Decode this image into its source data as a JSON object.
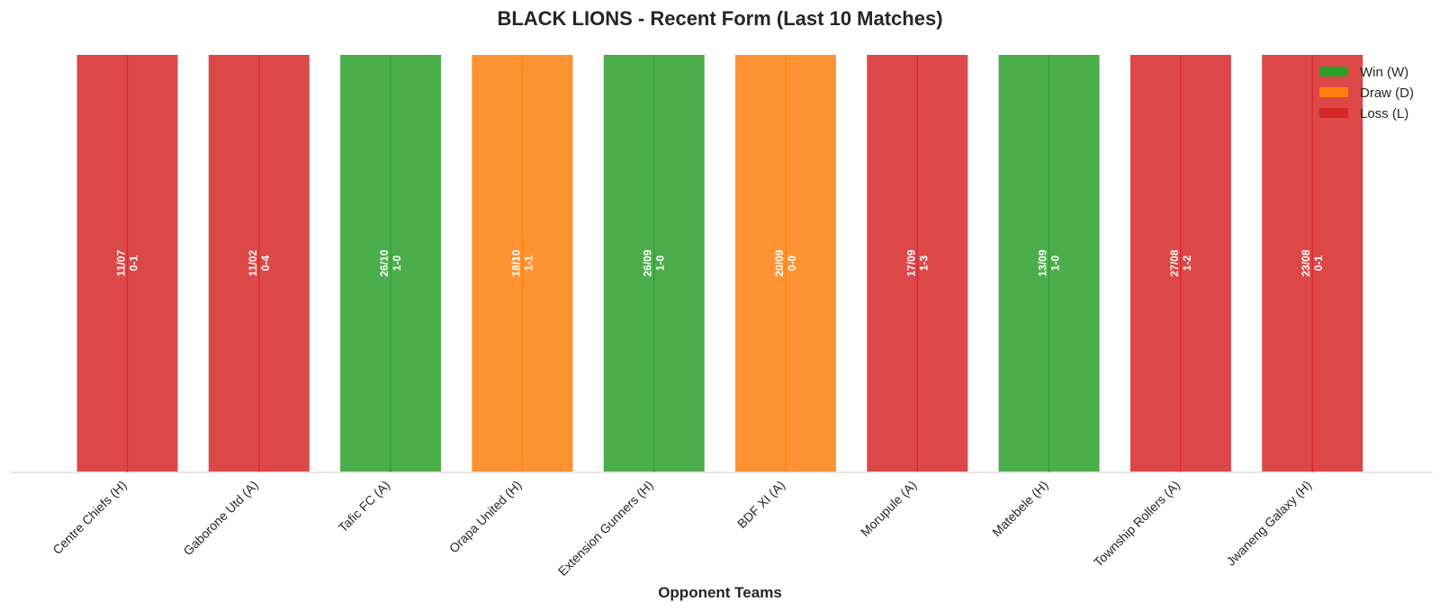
{
  "chart_data": {
    "type": "bar",
    "title": "BLACK LIONS - Recent Form (Last 10 Matches)",
    "xlabel": "Opponent Teams",
    "ylabel": "",
    "categories": [
      "Centre Chiefs (H)",
      "Gaborone Utd (A)",
      "Tafic FC (A)",
      "Orapa United (H)",
      "Extension Gunners (H)",
      "BDF XI (A)",
      "Morupule (A)",
      "Matebele (H)",
      "Township Rollers (A)",
      "Jwaneng Galaxy (H)"
    ],
    "results": [
      "L",
      "L",
      "W",
      "D",
      "W",
      "D",
      "L",
      "W",
      "L",
      "L"
    ],
    "dates": [
      "11/07",
      "11/02",
      "26/10",
      "18/10",
      "26/09",
      "20/09",
      "17/09",
      "13/09",
      "27/08",
      "23/08"
    ],
    "scores": [
      "0-1",
      "0-4",
      "1-0",
      "1-1",
      "1-0",
      "0-0",
      "1-3",
      "1-0",
      "1-2",
      "0-1"
    ],
    "values": [
      1,
      1,
      1,
      1,
      1,
      1,
      1,
      1,
      1,
      1
    ],
    "ylim": [
      0,
      1
    ],
    "grid": false,
    "legend_position": "top-right",
    "legend": [
      {
        "key": "W",
        "label": "Win (W)",
        "color": "#2ca02c"
      },
      {
        "key": "D",
        "label": "Draw (D)",
        "color": "#ff7f0e"
      },
      {
        "key": "L",
        "label": "Loss (L)",
        "color": "#d62728"
      }
    ]
  }
}
